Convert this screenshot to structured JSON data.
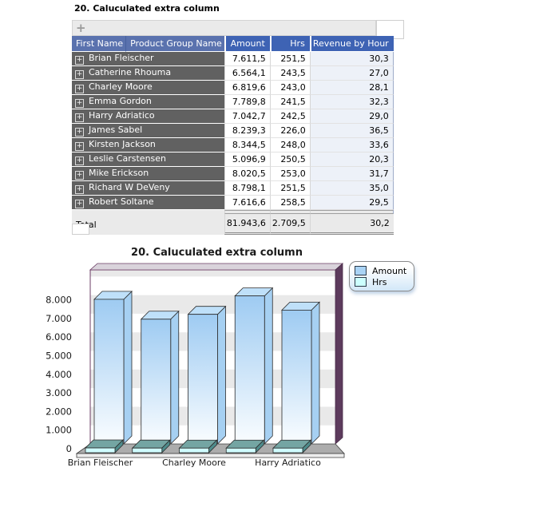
{
  "pivot": {
    "title": "20. Caluculated extra column",
    "toolbar": {
      "add_glyph": "+"
    },
    "expand_glyph": "+",
    "columns": {
      "first_name": "First Name",
      "product_group": "Product Group Name",
      "amount": "Amount",
      "hrs": "Hrs",
      "revenue": "Revenue by Hour"
    },
    "rows": [
      {
        "name": "Brian Fleischer",
        "amount": "7.611,5",
        "hrs": "251,5",
        "revenue": "30,3"
      },
      {
        "name": "Catherine Rhouma",
        "amount": "6.564,1",
        "hrs": "243,5",
        "revenue": "27,0"
      },
      {
        "name": "Charley Moore",
        "amount": "6.819,6",
        "hrs": "243,0",
        "revenue": "28,1"
      },
      {
        "name": "Emma Gordon",
        "amount": "7.789,8",
        "hrs": "241,5",
        "revenue": "32,3"
      },
      {
        "name": "Harry Adriatico",
        "amount": "7.042,7",
        "hrs": "242,5",
        "revenue": "29,0"
      },
      {
        "name": "James Sabel",
        "amount": "8.239,3",
        "hrs": "226,0",
        "revenue": "36,5"
      },
      {
        "name": "Kirsten Jackson",
        "amount": "8.344,5",
        "hrs": "248,0",
        "revenue": "33,6"
      },
      {
        "name": "Leslie Carstensen",
        "amount": "5.096,9",
        "hrs": "250,5",
        "revenue": "20,3"
      },
      {
        "name": "Mike Erickson",
        "amount": "8.020,5",
        "hrs": "253,0",
        "revenue": "31,7"
      },
      {
        "name": "Richard W DeVeny",
        "amount": "8.798,1",
        "hrs": "251,5",
        "revenue": "35,0"
      },
      {
        "name": "Robert Soltane",
        "amount": "7.616,6",
        "hrs": "258,5",
        "revenue": "29,5"
      }
    ],
    "total": {
      "label": "Total",
      "amount": "81.943,6",
      "hrs": "2.709,5",
      "revenue": "30,2"
    }
  },
  "chart_data": {
    "type": "bar",
    "title": "20. Caluculated extra column",
    "categories": [
      "Brian Fleischer",
      "Catherine Rhouma",
      "Charley Moore",
      "Emma Gordon",
      "Harry Adriatico"
    ],
    "series": [
      {
        "name": "Amount",
        "color": "#A9D3F5",
        "values": [
          7611.5,
          6564.1,
          6819.6,
          7789.8,
          7042.7
        ]
      },
      {
        "name": "Hrs",
        "color": "#CCFFFF",
        "values": [
          251.5,
          243.5,
          243.0,
          241.5,
          242.5
        ]
      }
    ],
    "x_tick_labels": [
      "Brian Fleischer",
      "Charley Moore",
      "Harry Adriatico"
    ],
    "y_ticks": [
      "0",
      "1.000",
      "2.000",
      "3.000",
      "4.000",
      "5.000",
      "6.000",
      "7.000",
      "8.000"
    ],
    "ylim": [
      0,
      9500
    ],
    "grid": "horizontal-stripes",
    "legend_position": "top-right",
    "style_colors": {
      "frame_purple": "#5D3B5D",
      "frame_top": "#D9D3DB",
      "stripe_gray": "#E9E9E9",
      "floor_gray": "#ACACAC",
      "hrs_top_teal": "#74A5A3"
    }
  }
}
